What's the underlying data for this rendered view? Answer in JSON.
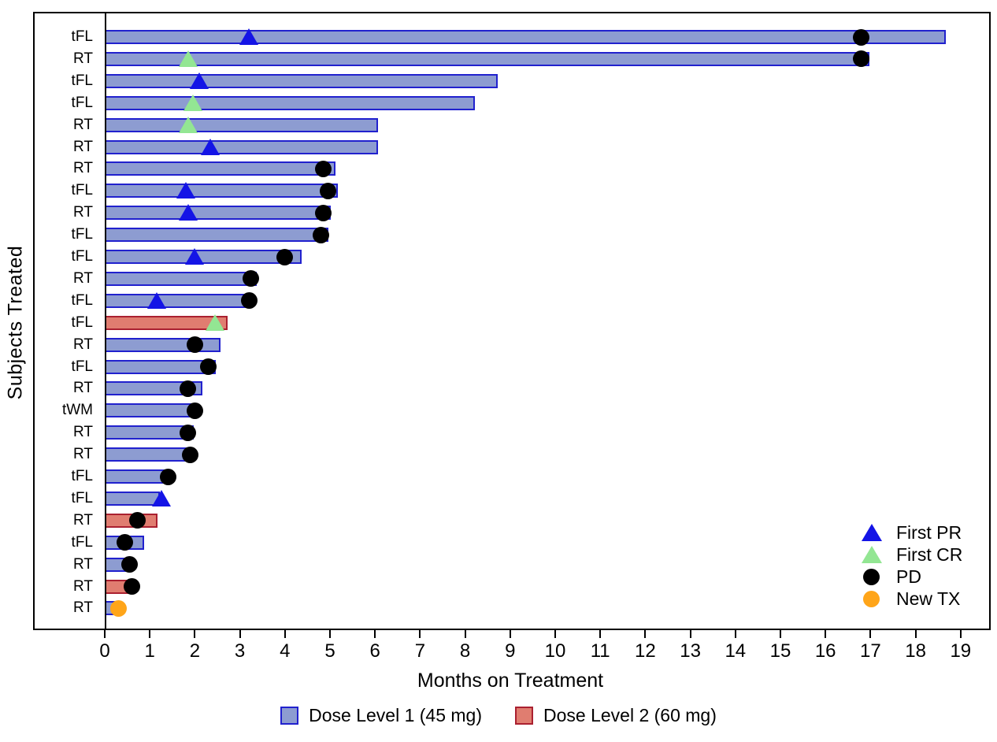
{
  "chart_data": {
    "type": "bar",
    "variant": "swimmer-plot",
    "title": "",
    "xlabel": "Months on Treatment",
    "ylabel": "Subjects Treated",
    "xlim": [
      0,
      19.7
    ],
    "x_ticks": [
      0,
      1,
      2,
      3,
      4,
      5,
      6,
      7,
      8,
      9,
      10,
      11,
      12,
      13,
      14,
      15,
      16,
      17,
      18,
      19
    ],
    "grid": false,
    "legend_position": "inside bottom-right",
    "legend": [
      {
        "id": "PR",
        "label": "First PR",
        "marker": "triangle",
        "color": "#1414E6"
      },
      {
        "id": "CR",
        "label": "First CR",
        "marker": "triangle",
        "color": "#93E693"
      },
      {
        "id": "PD",
        "label": "PD",
        "marker": "circle",
        "color": "#000000"
      },
      {
        "id": "NEWTX",
        "label": "New TX",
        "marker": "circle",
        "color": "#FFA519"
      }
    ],
    "dose_legend": [
      {
        "label": "Dose Level 1 (45 mg)",
        "fill": "#8D9CD1",
        "border": "#2121CE"
      },
      {
        "label": "Dose Level 2 (60 mg)",
        "fill": "#E07D70",
        "border": "#AA2030"
      }
    ],
    "subjects": [
      {
        "label": "tFL",
        "dose": 1,
        "months": 18.6,
        "markers": [
          {
            "type": "PR",
            "x": 3.2
          },
          {
            "type": "PD",
            "x": 16.8
          }
        ]
      },
      {
        "label": "RT",
        "dose": 1,
        "months": 16.9,
        "markers": [
          {
            "type": "CR",
            "x": 1.85
          },
          {
            "type": "PD",
            "x": 16.8
          }
        ]
      },
      {
        "label": "tFL",
        "dose": 1,
        "months": 8.65,
        "markers": [
          {
            "type": "PR",
            "x": 2.1
          }
        ]
      },
      {
        "label": "tFL",
        "dose": 1,
        "months": 8.15,
        "markers": [
          {
            "type": "CR",
            "x": 1.95
          }
        ]
      },
      {
        "label": "RT",
        "dose": 1,
        "months": 6.0,
        "markers": [
          {
            "type": "CR",
            "x": 1.85
          }
        ]
      },
      {
        "label": "RT",
        "dose": 1,
        "months": 6.0,
        "markers": [
          {
            "type": "PR",
            "x": 2.35
          }
        ]
      },
      {
        "label": "RT",
        "dose": 1,
        "months": 5.05,
        "markers": [
          {
            "type": "PD",
            "x": 4.85
          }
        ]
      },
      {
        "label": "tFL",
        "dose": 1,
        "months": 5.1,
        "markers": [
          {
            "type": "PR",
            "x": 1.8
          },
          {
            "type": "PD",
            "x": 4.95
          }
        ]
      },
      {
        "label": "RT",
        "dose": 1,
        "months": 4.95,
        "markers": [
          {
            "type": "PR",
            "x": 1.85
          },
          {
            "type": "PD",
            "x": 4.85
          }
        ]
      },
      {
        "label": "tFL",
        "dose": 1,
        "months": 4.9,
        "markers": [
          {
            "type": "PD",
            "x": 4.8
          }
        ]
      },
      {
        "label": "tFL",
        "dose": 1,
        "months": 4.3,
        "markers": [
          {
            "type": "PR",
            "x": 2.0
          },
          {
            "type": "PD",
            "x": 4.0
          }
        ]
      },
      {
        "label": "RT",
        "dose": 1,
        "months": 3.3,
        "markers": [
          {
            "type": "PD",
            "x": 3.25
          }
        ]
      },
      {
        "label": "tFL",
        "dose": 1,
        "months": 3.2,
        "markers": [
          {
            "type": "PR",
            "x": 1.15
          },
          {
            "type": "PD",
            "x": 3.2
          }
        ]
      },
      {
        "label": "tFL",
        "dose": 2,
        "months": 2.65,
        "markers": [
          {
            "type": "CR",
            "x": 2.45
          }
        ]
      },
      {
        "label": "RT",
        "dose": 1,
        "months": 2.5,
        "markers": [
          {
            "type": "PD",
            "x": 2.0
          }
        ]
      },
      {
        "label": "tFL",
        "dose": 1,
        "months": 2.4,
        "markers": [
          {
            "type": "PD",
            "x": 2.3
          }
        ]
      },
      {
        "label": "RT",
        "dose": 1,
        "months": 2.1,
        "markers": [
          {
            "type": "PD",
            "x": 1.85
          }
        ]
      },
      {
        "label": "tWM",
        "dose": 1,
        "months": 1.9,
        "markers": [
          {
            "type": "PD",
            "x": 2.0
          }
        ]
      },
      {
        "label": "RT",
        "dose": 1,
        "months": 1.9,
        "markers": [
          {
            "type": "PD",
            "x": 1.85
          }
        ]
      },
      {
        "label": "RT",
        "dose": 1,
        "months": 1.9,
        "markers": [
          {
            "type": "PD",
            "x": 1.9
          }
        ]
      },
      {
        "label": "tFL",
        "dose": 1,
        "months": 1.3,
        "markers": [
          {
            "type": "PD",
            "x": 1.4
          }
        ]
      },
      {
        "label": "tFL",
        "dose": 1,
        "months": 1.15,
        "markers": [
          {
            "type": "PR",
            "x": 1.25
          }
        ]
      },
      {
        "label": "RT",
        "dose": 2,
        "months": 1.1,
        "markers": [
          {
            "type": "PD",
            "x": 0.72
          }
        ]
      },
      {
        "label": "tFL",
        "dose": 1,
        "months": 0.8,
        "markers": [
          {
            "type": "PD",
            "x": 0.45
          }
        ]
      },
      {
        "label": "RT",
        "dose": 1,
        "months": 0.45,
        "markers": [
          {
            "type": "PD",
            "x": 0.55
          }
        ]
      },
      {
        "label": "RT",
        "dose": 2,
        "months": 0.45,
        "markers": [
          {
            "type": "PD",
            "x": 0.6
          }
        ]
      },
      {
        "label": "RT",
        "dose": 1,
        "months": 0.25,
        "markers": [
          {
            "type": "NEWTX",
            "x": 0.3
          }
        ]
      }
    ]
  }
}
